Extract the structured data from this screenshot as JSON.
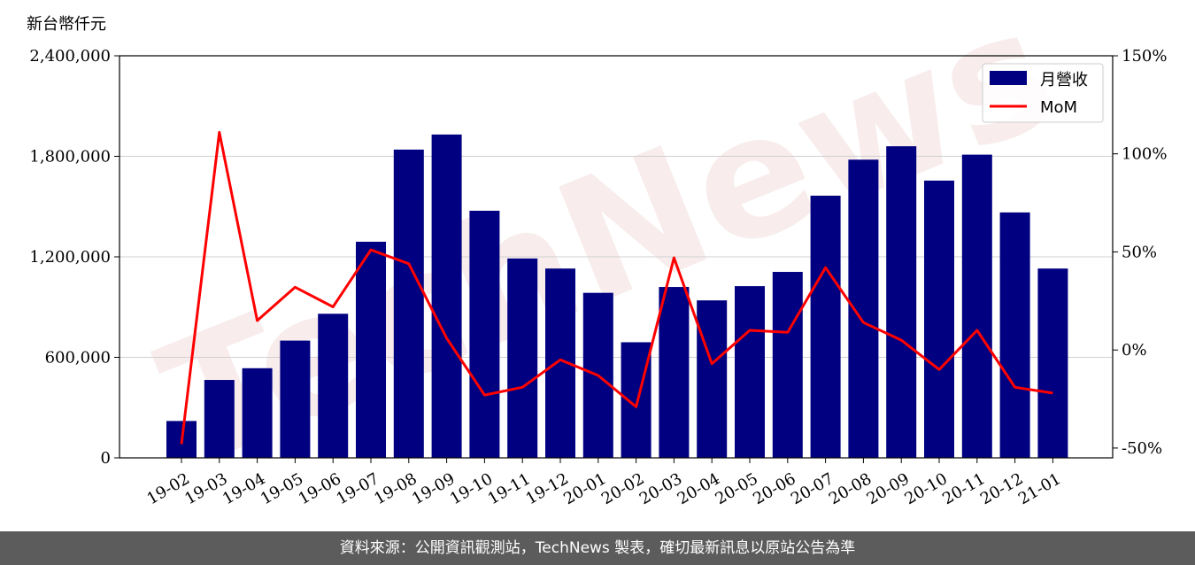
{
  "chart_data": {
    "type": "bar",
    "unit_label": "新台幣仟元",
    "categories": [
      "19-02",
      "19-03",
      "19-04",
      "19-05",
      "19-06",
      "19-07",
      "19-08",
      "19-09",
      "19-10",
      "19-11",
      "19-12",
      "20-01",
      "20-02",
      "20-03",
      "20-04",
      "20-05",
      "20-06",
      "20-07",
      "20-08",
      "20-09",
      "20-10",
      "20-11",
      "20-12",
      "21-01"
    ],
    "series": [
      {
        "name": "月營收",
        "type": "bar",
        "axis": "left",
        "color": "#000080",
        "values": [
          220000,
          465000,
          535000,
          700000,
          860000,
          1290000,
          1840000,
          1930000,
          1475000,
          1190000,
          1130000,
          985000,
          690000,
          1020000,
          940000,
          1025000,
          1110000,
          1565000,
          1780000,
          1860000,
          1655000,
          1810000,
          1465000,
          1130000
        ]
      },
      {
        "name": "MoM",
        "type": "line",
        "axis": "right",
        "color": "#ff0000",
        "values": [
          -48,
          111,
          15,
          32,
          22,
          51,
          44,
          6,
          -23,
          -19,
          -5,
          -13,
          -29,
          47,
          -7,
          10,
          9,
          42,
          14,
          5,
          -10,
          10,
          -19,
          -22
        ]
      }
    ],
    "y_left": {
      "range": [
        0,
        2400000
      ],
      "ticks": [
        "0",
        "600,000",
        "1,200,000",
        "1,800,000",
        "2,400,000"
      ],
      "tick_values": [
        0,
        600000,
        1200000,
        1800000,
        2400000
      ]
    },
    "y_right": {
      "range": [
        -55,
        150
      ],
      "ticks": [
        "-50%",
        "0%",
        "50%",
        "100%",
        "150%"
      ],
      "tick_values": [
        -50,
        0,
        50,
        100,
        150
      ]
    },
    "grid": true,
    "legend_position": "top-right",
    "watermark": "TechNews"
  },
  "footer": {
    "text": "資料來源：公開資訊觀測站，TechNews 製表，確切最新訊息以原站公告為準"
  }
}
